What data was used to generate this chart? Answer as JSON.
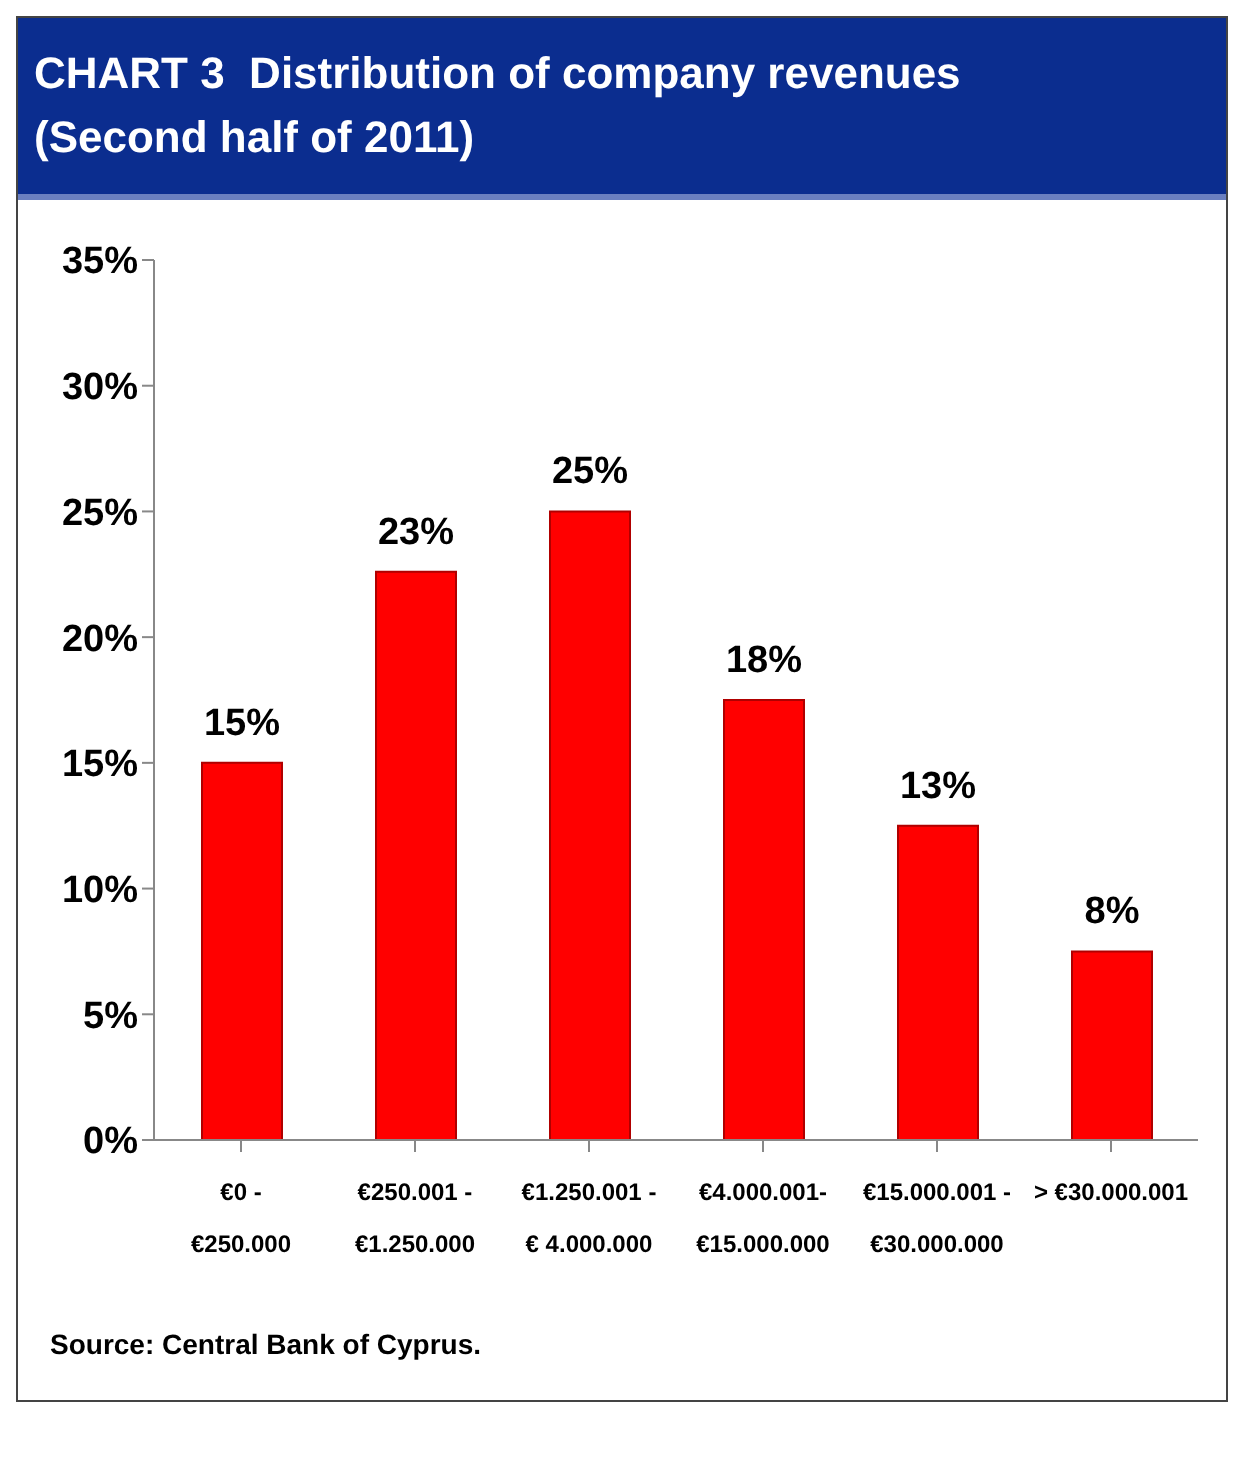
{
  "chart_data": {
    "type": "bar",
    "title": "CHART 3  Distribution of company revenues\n(Second half of 2011)",
    "categories": [
      "€0 -\n€250.000",
      "€250.001 -\n€1.250.000",
      "€1.250.001 -\n€ 4.000.000",
      "€4.000.001-\n€15.000.000",
      "€15.000.001 -\n€30.000.000",
      "> €30.000.001"
    ],
    "values": [
      15,
      22.6,
      25,
      17.5,
      12.5,
      7.5
    ],
    "value_labels": [
      "15%",
      "23%",
      "25%",
      "18%",
      "13%",
      "8%"
    ],
    "color": "#ff0000",
    "ylim": [
      0,
      35
    ],
    "yticks": [
      {
        "value": 0,
        "label": "0%"
      },
      {
        "value": 5,
        "label": "5%"
      },
      {
        "value": 10,
        "label": "10%"
      },
      {
        "value": 15,
        "label": "15%"
      },
      {
        "value": 20,
        "label": "20%"
      },
      {
        "value": 25,
        "label": "25%"
      },
      {
        "value": 30,
        "label": "30%"
      },
      {
        "value": 35,
        "label": "35%"
      }
    ],
    "grid": false,
    "annotations": [
      "Source: Central Bank of Cyprus."
    ]
  }
}
